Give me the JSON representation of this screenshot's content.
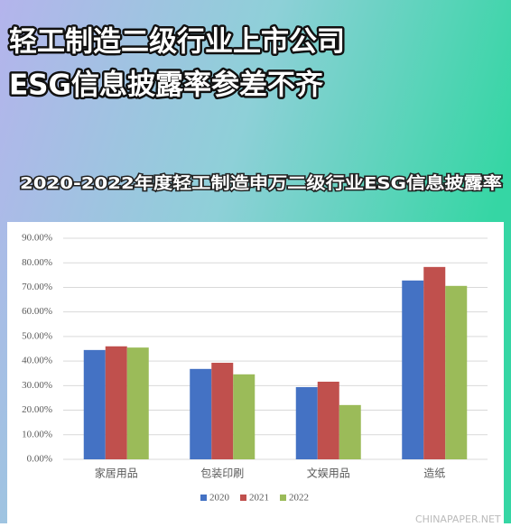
{
  "headline": [
    "轻工制造二级行业上市公司",
    "ESG信息披露率参差不齐"
  ],
  "chart_data": {
    "type": "bar",
    "title": "2020-2022年度轻工制造申万二级行业ESG信息披露率",
    "categories": [
      "家居用品",
      "包装印刷",
      "文娱用品",
      "造纸"
    ],
    "series": [
      {
        "name": "2020",
        "color": "#4472c4",
        "values": [
          44.5,
          36.8,
          29.4,
          72.8
        ]
      },
      {
        "name": "2021",
        "color": "#c0504d",
        "values": [
          46.0,
          39.3,
          31.6,
          78.3
        ]
      },
      {
        "name": "2022",
        "color": "#9bbb59",
        "values": [
          45.5,
          34.6,
          22.1,
          70.6
        ]
      }
    ],
    "ylim": [
      0,
      90
    ],
    "yticks": [
      {
        "value": 0,
        "label": "0.00%"
      },
      {
        "value": 10,
        "label": "10.00%"
      },
      {
        "value": 20,
        "label": "20.00%"
      },
      {
        "value": 30,
        "label": "30.00%"
      },
      {
        "value": 40,
        "label": "40.00%"
      },
      {
        "value": 50,
        "label": "50.00%"
      },
      {
        "value": 60,
        "label": "60.00%"
      },
      {
        "value": 70,
        "label": "70.00%"
      },
      {
        "value": 80,
        "label": "80.00%"
      },
      {
        "value": 90,
        "label": "90.00%"
      }
    ],
    "grid": true,
    "legend": "bottom"
  },
  "watermark": "CHINAPAPER.NET"
}
